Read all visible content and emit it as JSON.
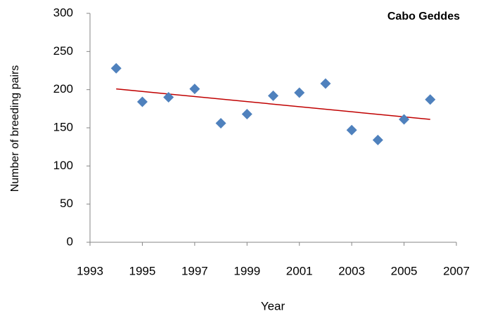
{
  "chart_data": {
    "type": "scatter",
    "title": "Cabo Geddes",
    "x_label": "Year",
    "y_label": "Number of breeding  pairs",
    "x": [
      1994,
      1995,
      1996,
      1997,
      1998,
      1999,
      2000,
      2001,
      2002,
      2003,
      2004,
      2005,
      2006
    ],
    "values": [
      228,
      184,
      190,
      201,
      156,
      168,
      192,
      196,
      208,
      147,
      134,
      161,
      187
    ],
    "color": "#4f81bd",
    "trendline": {
      "x": [
        1994,
        2006
      ],
      "values": [
        201,
        161
      ],
      "color": "#c00000"
    },
    "xlim": [
      1993,
      2007
    ],
    "xticks": [
      1993,
      1995,
      1997,
      1999,
      2001,
      2003,
      2005,
      2007
    ],
    "ylim": [
      0,
      300
    ],
    "yticks": [
      0,
      50,
      100,
      150,
      200,
      250,
      300
    ],
    "grid": false
  }
}
